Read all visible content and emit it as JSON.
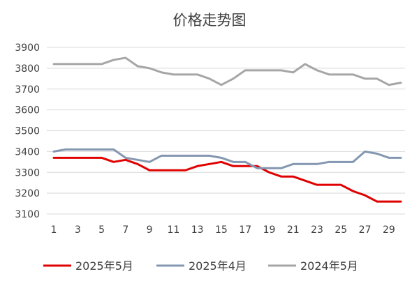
{
  "chart_data": {
    "type": "line",
    "title": "价格走势图",
    "xlabel": "",
    "ylabel": "",
    "x": [
      1,
      2,
      3,
      4,
      5,
      6,
      7,
      8,
      9,
      10,
      11,
      12,
      13,
      14,
      15,
      16,
      17,
      18,
      19,
      20,
      21,
      22,
      23,
      24,
      25,
      26,
      27,
      28,
      29,
      30
    ],
    "x_tick_labels": [
      "1",
      "3",
      "5",
      "7",
      "9",
      "11",
      "13",
      "15",
      "17",
      "19",
      "21",
      "23",
      "25",
      "27",
      "29"
    ],
    "ylim": [
      3100,
      3900
    ],
    "y_ticks": [
      3100,
      3200,
      3300,
      3400,
      3500,
      3600,
      3700,
      3800,
      3900
    ],
    "grid": "horizontal",
    "legend_position": "bottom",
    "series": [
      {
        "name": "2025年5月",
        "color": "#e00000",
        "values": [
          3370,
          3370,
          3370,
          3370,
          3370,
          3350,
          3360,
          3340,
          3310,
          3310,
          3310,
          3310,
          3330,
          3340,
          3350,
          3330,
          3330,
          3330,
          3300,
          3280,
          3280,
          3260,
          3240,
          3240,
          3240,
          3210,
          3190,
          3160,
          3160,
          3160
        ]
      },
      {
        "name": "2025年4月",
        "color": "#8497b0",
        "values": [
          3400,
          3410,
          3410,
          3410,
          3410,
          3410,
          3370,
          3360,
          3350,
          3380,
          3380,
          3380,
          3380,
          3380,
          3370,
          3350,
          3350,
          3320,
          3320,
          3320,
          3340,
          3340,
          3340,
          3350,
          3350,
          3350,
          3400,
          3390,
          3370,
          3370
        ]
      },
      {
        "name": "2024年5月",
        "color": "#a6a6a6",
        "values": [
          3820,
          3820,
          3820,
          3820,
          3820,
          3840,
          3850,
          3810,
          3800,
          3780,
          3770,
          3770,
          3770,
          3750,
          3720,
          3750,
          3790,
          3790,
          3790,
          3790,
          3780,
          3820,
          3790,
          3770,
          3770,
          3770,
          3750,
          3750,
          3720,
          3730
        ]
      }
    ]
  }
}
